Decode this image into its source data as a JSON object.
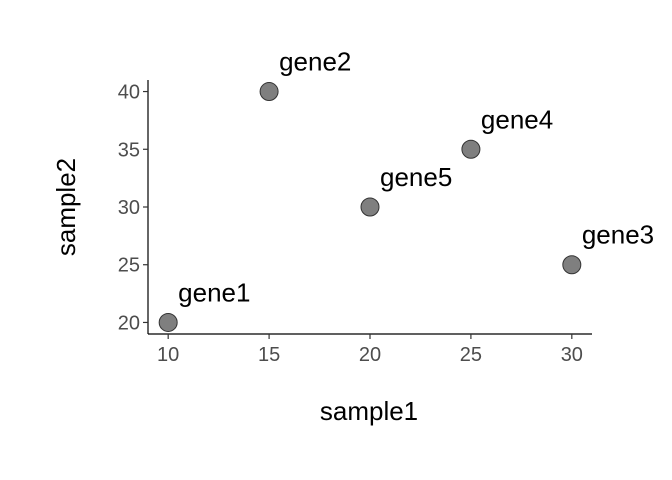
{
  "chart_data": {
    "type": "scatter",
    "title": "",
    "xlabel": "sample1",
    "ylabel": "sample2",
    "xlim": [
      9,
      31
    ],
    "ylim": [
      19,
      41
    ],
    "xticks": [
      "10",
      "15",
      "20",
      "25",
      "30"
    ],
    "yticks": [
      "20",
      "25",
      "30",
      "35",
      "40"
    ],
    "grid": false,
    "legend": "none",
    "point_color": "#7f7f7f",
    "point_outline": "#333333",
    "points": [
      {
        "label": "gene1",
        "x": 10,
        "y": 20
      },
      {
        "label": "gene2",
        "x": 15,
        "y": 40
      },
      {
        "label": "gene3",
        "x": 30,
        "y": 25
      },
      {
        "label": "gene4",
        "x": 25,
        "y": 35
      },
      {
        "label": "gene5",
        "x": 20,
        "y": 30
      }
    ]
  }
}
